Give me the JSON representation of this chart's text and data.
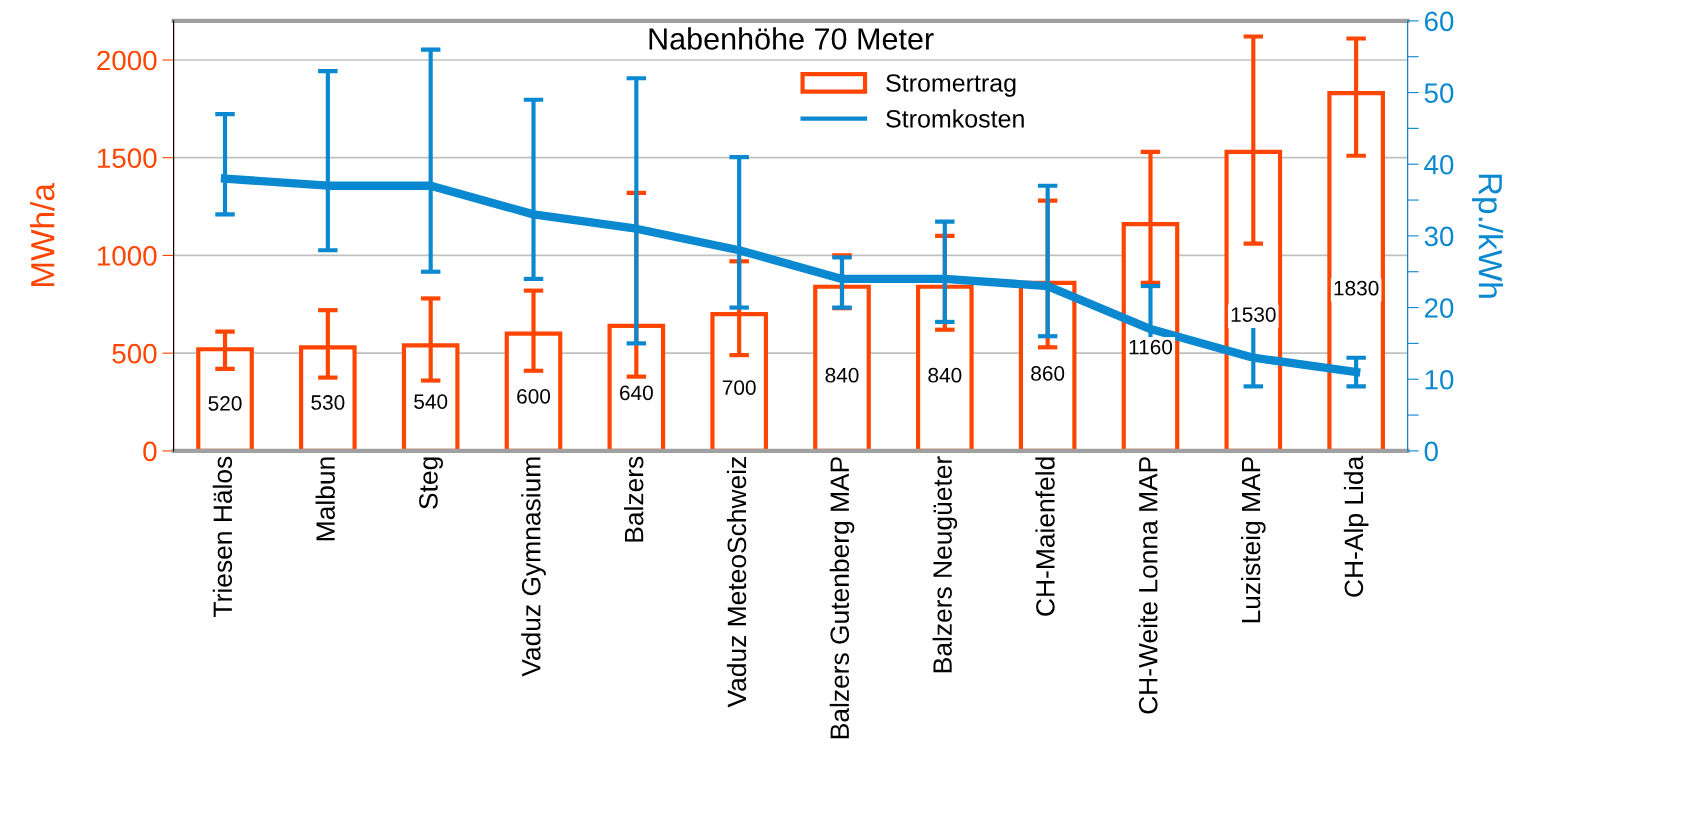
{
  "chart_data": {
    "type": "bar",
    "title": "Nabenhöhe 70 Meter",
    "categories": [
      "Triesen Hälos",
      "Malbun",
      "Steg",
      "Vaduz Gymnasium",
      "Balzers",
      "Vaduz MeteoSchweiz",
      "Balzers Gutenberg MAP",
      "Balzers Neugüeter",
      "CH-Maienfeld",
      "CH-Weite Lonna MAP",
      "Luzisteig MAP",
      "CH-Alp Lida"
    ],
    "series": [
      {
        "name": "Stromertrag",
        "color": "#ff4500",
        "values": [
          520,
          530,
          540,
          600,
          640,
          700,
          840,
          840,
          860,
          1160,
          1530,
          1830
        ],
        "value_labels": [
          "520",
          "530",
          "540",
          "600",
          "640",
          "700",
          "840",
          "840",
          "860",
          "1160",
          "1530",
          "1830"
        ],
        "errors": [
          [
            420,
            610
          ],
          [
            375,
            720
          ],
          [
            360,
            780
          ],
          [
            410,
            820
          ],
          [
            380,
            1320
          ],
          [
            490,
            970
          ],
          [
            730,
            1000
          ],
          [
            620,
            1100
          ],
          [
            530,
            1280
          ],
          [
            860,
            1530
          ],
          [
            1060,
            2120
          ],
          [
            1510,
            2110
          ]
        ]
      },
      {
        "name": "Stromkosten",
        "type": "line",
        "axis": "y2",
        "color": "#0a88d0",
        "values": [
          38,
          37,
          37,
          33,
          31,
          28,
          24,
          24,
          23,
          17,
          13,
          11
        ],
        "errors": [
          [
            33,
            47
          ],
          [
            28,
            53
          ],
          [
            25,
            56
          ],
          [
            24,
            49
          ],
          [
            15,
            52
          ],
          [
            20,
            41
          ],
          [
            20,
            27
          ],
          [
            18,
            32
          ],
          [
            16,
            37
          ],
          [
            13,
            23
          ],
          [
            9,
            19
          ],
          [
            9,
            13
          ]
        ]
      }
    ],
    "ylabel": "MWh/a",
    "y2label": "Rp./kWh",
    "ylim": [
      0,
      2200
    ],
    "yticks": [
      0,
      500,
      1000,
      1500,
      2000
    ],
    "y2lim": [
      0,
      60
    ],
    "y2ticks": [
      0,
      {
        "value": 5,
        "label": null
      },
      10,
      {
        "value": 15,
        "label": null
      },
      20,
      {
        "value": 25,
        "label": null
      },
      30,
      {
        "value": 35,
        "label": null
      },
      40,
      {
        "value": 45,
        "label": null
      },
      50,
      {
        "value": 55,
        "label": null
      },
      60
    ],
    "grid": "y",
    "legend": "top",
    "marker": "none"
  }
}
